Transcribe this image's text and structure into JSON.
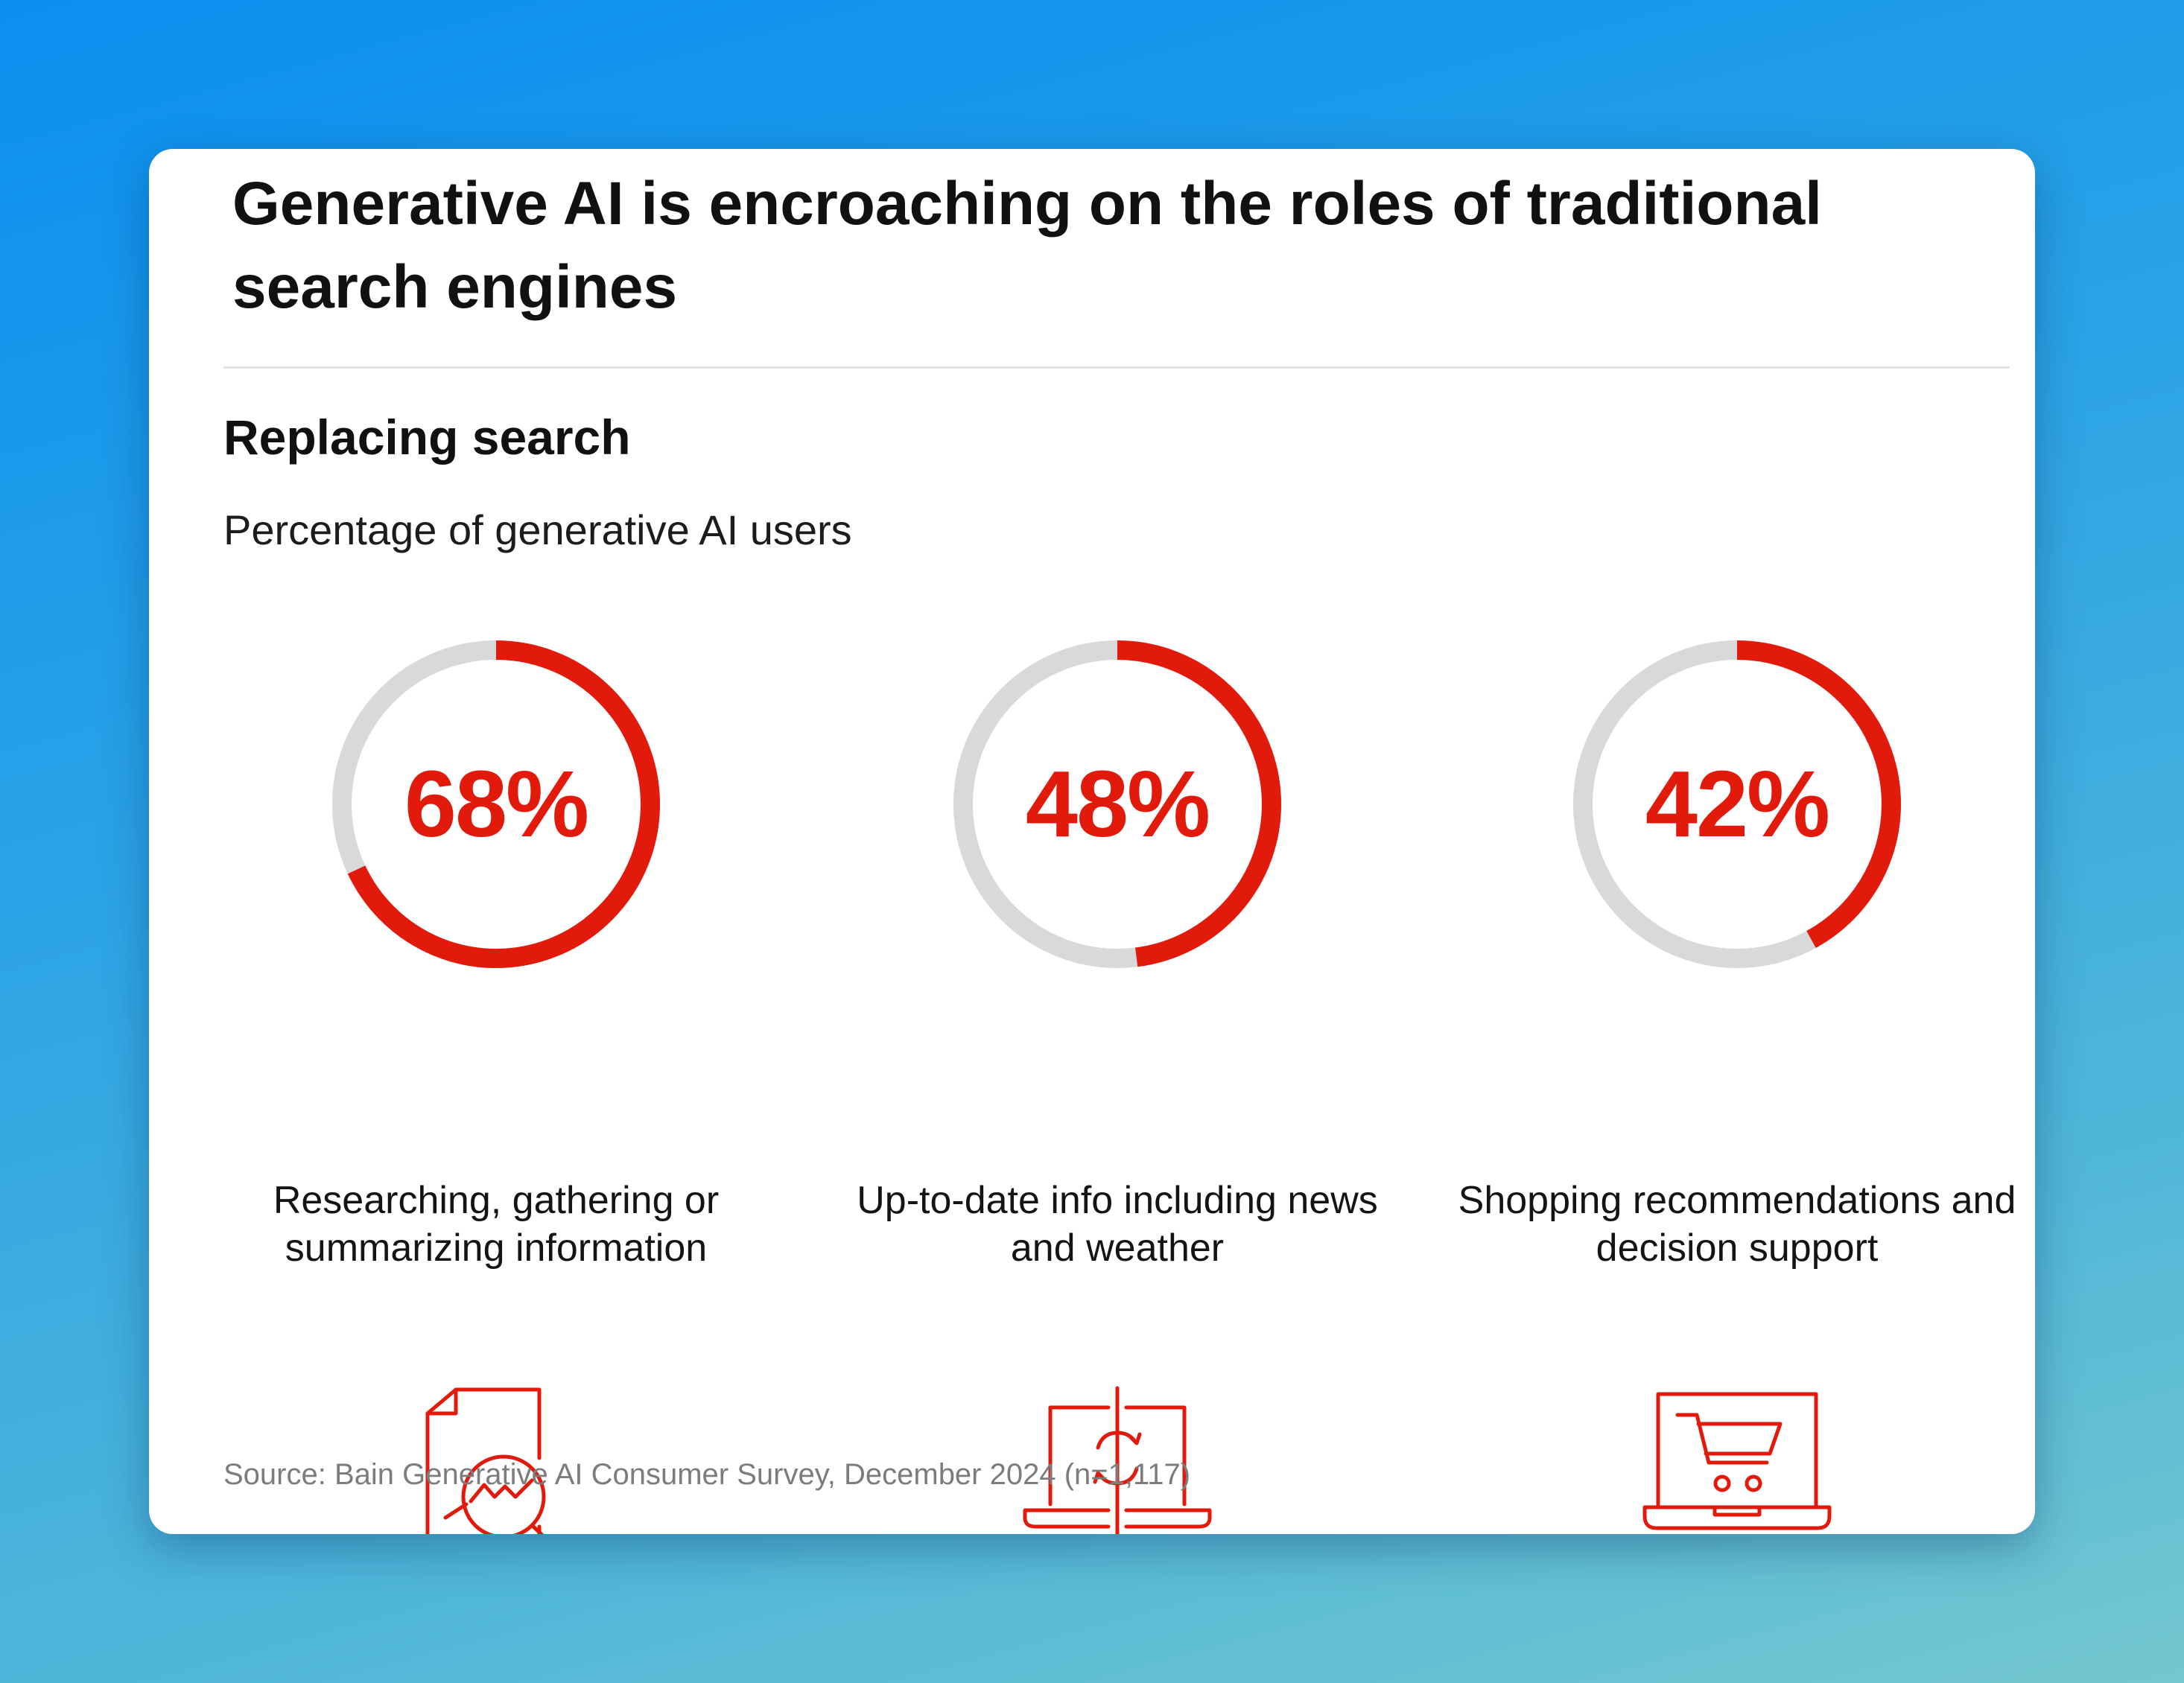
{
  "header": {
    "title": "Generative AI is encroaching on the roles of traditional search engines",
    "subtitle": "Replacing search",
    "caption": "Percentage of generative AI users"
  },
  "chart_data": {
    "type": "donut",
    "unit": "%",
    "items": [
      {
        "value": 68,
        "value_label": "68%",
        "label": "Researching, gathering or summarizing information",
        "icon": "document-analysis-icon"
      },
      {
        "value": 48,
        "value_label": "48%",
        "label": "Up-to-date info including news and weather",
        "icon": "laptop-refresh-icon"
      },
      {
        "value": 42,
        "value_label": "42%",
        "label": "Shopping recommendations and decision support",
        "icon": "laptop-cart-icon"
      }
    ],
    "colors": {
      "filled": "#e11a0c",
      "track": "#d9d9dc"
    }
  },
  "footer": {
    "source": "Source: Bain Generative AI Consumer Survey, December 2024 (n=1,117)"
  }
}
